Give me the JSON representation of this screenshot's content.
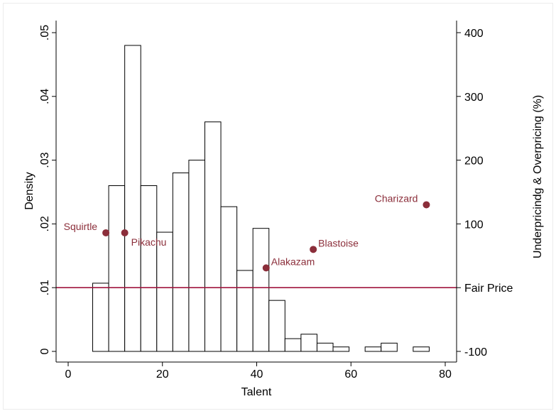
{
  "chart_data": {
    "type": "bar",
    "xlabel": "Talent",
    "ylabel_left": "Density",
    "ylabel_right": "Underpricindg & Overpricing (%)",
    "xlim": [
      0,
      80
    ],
    "ylim_left": [
      0,
      0.05
    ],
    "ylim_right": [
      -100,
      400
    ],
    "x_ticks": [
      "0",
      "20",
      "40",
      "60",
      "80"
    ],
    "y_ticks_left": [
      "0",
      ".01",
      ".02",
      ".03",
      ".04",
      ".05"
    ],
    "y_ticks_right": [
      "-100",
      "100",
      "200",
      "300",
      "400"
    ],
    "histogram": {
      "bin_width": 3.4,
      "bins": [
        {
          "x_start": 5.2,
          "density": 0.0107
        },
        {
          "x_start": 8.6,
          "density": 0.026
        },
        {
          "x_start": 12.0,
          "density": 0.048
        },
        {
          "x_start": 15.4,
          "density": 0.026
        },
        {
          "x_start": 18.8,
          "density": 0.0187
        },
        {
          "x_start": 22.2,
          "density": 0.028
        },
        {
          "x_start": 25.6,
          "density": 0.03
        },
        {
          "x_start": 29.0,
          "density": 0.036
        },
        {
          "x_start": 32.4,
          "density": 0.0227
        },
        {
          "x_start": 35.8,
          "density": 0.0127
        },
        {
          "x_start": 39.2,
          "density": 0.0193
        },
        {
          "x_start": 42.6,
          "density": 0.008
        },
        {
          "x_start": 46.0,
          "density": 0.002
        },
        {
          "x_start": 49.4,
          "density": 0.0027
        },
        {
          "x_start": 52.8,
          "density": 0.0013
        },
        {
          "x_start": 56.2,
          "density": 0.0007
        },
        {
          "x_start": 63.0,
          "density": 0.0007
        },
        {
          "x_start": 66.4,
          "density": 0.0013
        },
        {
          "x_start": 73.2,
          "density": 0.0007
        }
      ]
    },
    "points": [
      {
        "name": "Squirtle",
        "x": 8,
        "y": 86,
        "label_side": "left"
      },
      {
        "name": "Pikachu",
        "x": 12,
        "y": 86,
        "label_side": "below-right"
      },
      {
        "name": "Alakazam",
        "x": 42,
        "y": 31,
        "label_side": "right"
      },
      {
        "name": "Blastoise",
        "x": 52,
        "y": 60,
        "label_side": "right"
      },
      {
        "name": "Charizard",
        "x": 76,
        "y": 130,
        "label_side": "left"
      }
    ],
    "reference_line": {
      "label": "Fair Price",
      "y": 0
    },
    "colors": {
      "bar_fill": "#ffffff",
      "bar_stroke": "#000000",
      "point": "#8b2e3a",
      "point_label": "#8b2e3a",
      "reference_line": "#a0153e",
      "axis": "#000000"
    }
  }
}
